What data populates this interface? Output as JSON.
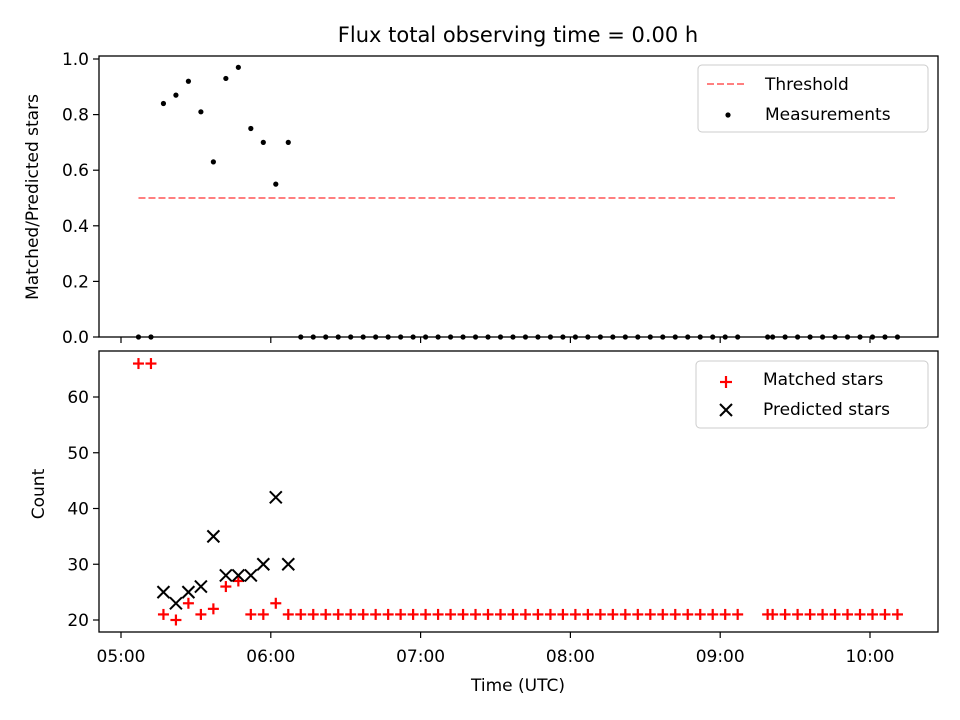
{
  "chart_data": {
    "title": "Flux total observing time = 0.00 h",
    "xlabel": "Time (UTC)",
    "x_ticks": [
      "05:00",
      "06:00",
      "07:00",
      "08:00",
      "09:00",
      "10:00"
    ],
    "panels": [
      {
        "type": "scatter",
        "ylabel": "Matched/Predicted stars",
        "ylim": [
          0.0,
          1.0
        ],
        "y_ticks": [
          "0.0",
          "0.2",
          "0.4",
          "0.6",
          "0.8",
          "1.0"
        ],
        "grid": false,
        "legend_position": "top-right",
        "threshold": {
          "name": "Threshold",
          "value": 0.5,
          "x_start": "05:07",
          "x_end": "10:10",
          "color": "#ff7f7f",
          "style": "dashed"
        },
        "series": [
          {
            "name": "Measurements",
            "marker": "dot",
            "color": "#000000",
            "points": [
              [
                "05:07",
                0.0
              ],
              [
                "05:12",
                0.0
              ],
              [
                "05:17",
                0.84
              ],
              [
                "05:22",
                0.87
              ],
              [
                "05:27",
                0.92
              ],
              [
                "05:32",
                0.81
              ],
              [
                "05:37",
                0.63
              ],
              [
                "05:42",
                0.93
              ],
              [
                "05:47",
                0.97
              ],
              [
                "05:52",
                0.75
              ],
              [
                "05:57",
                0.7
              ],
              [
                "06:02",
                0.55
              ],
              [
                "06:07",
                0.7
              ],
              [
                "06:12",
                0.0
              ],
              [
                "06:17",
                0.0
              ],
              [
                "06:22",
                0.0
              ],
              [
                "06:27",
                0.0
              ],
              [
                "06:32",
                0.0
              ],
              [
                "06:37",
                0.0
              ],
              [
                "06:42",
                0.0
              ],
              [
                "06:47",
                0.0
              ],
              [
                "06:52",
                0.0
              ],
              [
                "06:57",
                0.0
              ],
              [
                "07:02",
                0.0
              ],
              [
                "07:07",
                0.0
              ],
              [
                "07:12",
                0.0
              ],
              [
                "07:17",
                0.0
              ],
              [
                "07:22",
                0.0
              ],
              [
                "07:27",
                0.0
              ],
              [
                "07:32",
                0.0
              ],
              [
                "07:37",
                0.0
              ],
              [
                "07:42",
                0.0
              ],
              [
                "07:47",
                0.0
              ],
              [
                "07:52",
                0.0
              ],
              [
                "07:57",
                0.0
              ],
              [
                "08:02",
                0.0
              ],
              [
                "08:07",
                0.0
              ],
              [
                "08:12",
                0.0
              ],
              [
                "08:17",
                0.0
              ],
              [
                "08:22",
                0.0
              ],
              [
                "08:27",
                0.0
              ],
              [
                "08:32",
                0.0
              ],
              [
                "08:37",
                0.0
              ],
              [
                "08:42",
                0.0
              ],
              [
                "08:47",
                0.0
              ],
              [
                "08:52",
                0.0
              ],
              [
                "08:57",
                0.0
              ],
              [
                "09:02",
                0.0
              ],
              [
                "09:07",
                0.0
              ],
              [
                "09:19",
                0.0
              ],
              [
                "09:21",
                0.0
              ],
              [
                "09:26",
                0.0
              ],
              [
                "09:31",
                0.0
              ],
              [
                "09:36",
                0.0
              ],
              [
                "09:41",
                0.0
              ],
              [
                "09:46",
                0.0
              ],
              [
                "09:51",
                0.0
              ],
              [
                "09:56",
                0.0
              ],
              [
                "10:01",
                0.0
              ],
              [
                "10:06",
                0.0
              ],
              [
                "10:11",
                0.0
              ]
            ]
          }
        ]
      },
      {
        "type": "scatter",
        "ylabel": "Count",
        "ylim": [
          18,
          68
        ],
        "y_ticks": [
          "20",
          "30",
          "40",
          "50",
          "60"
        ],
        "grid": false,
        "legend_position": "top-right",
        "series": [
          {
            "name": "Matched stars",
            "marker": "plus",
            "color": "#ff0000",
            "points": [
              [
                "05:07",
                66
              ],
              [
                "05:12",
                66
              ],
              [
                "05:17",
                21
              ],
              [
                "05:22",
                20
              ],
              [
                "05:27",
                23
              ],
              [
                "05:32",
                21
              ],
              [
                "05:37",
                22
              ],
              [
                "05:42",
                26
              ],
              [
                "05:47",
                27
              ],
              [
                "05:52",
                21
              ],
              [
                "05:57",
                21
              ],
              [
                "06:02",
                23
              ],
              [
                "06:07",
                21
              ],
              [
                "06:12",
                21
              ],
              [
                "06:17",
                21
              ],
              [
                "06:22",
                21
              ],
              [
                "06:27",
                21
              ],
              [
                "06:32",
                21
              ],
              [
                "06:37",
                21
              ],
              [
                "06:42",
                21
              ],
              [
                "06:47",
                21
              ],
              [
                "06:52",
                21
              ],
              [
                "06:57",
                21
              ],
              [
                "07:02",
                21
              ],
              [
                "07:07",
                21
              ],
              [
                "07:12",
                21
              ],
              [
                "07:17",
                21
              ],
              [
                "07:22",
                21
              ],
              [
                "07:27",
                21
              ],
              [
                "07:32",
                21
              ],
              [
                "07:37",
                21
              ],
              [
                "07:42",
                21
              ],
              [
                "07:47",
                21
              ],
              [
                "07:52",
                21
              ],
              [
                "07:57",
                21
              ],
              [
                "08:02",
                21
              ],
              [
                "08:07",
                21
              ],
              [
                "08:12",
                21
              ],
              [
                "08:17",
                21
              ],
              [
                "08:22",
                21
              ],
              [
                "08:27",
                21
              ],
              [
                "08:32",
                21
              ],
              [
                "08:37",
                21
              ],
              [
                "08:42",
                21
              ],
              [
                "08:47",
                21
              ],
              [
                "08:52",
                21
              ],
              [
                "08:57",
                21
              ],
              [
                "09:02",
                21
              ],
              [
                "09:07",
                21
              ],
              [
                "09:19",
                21
              ],
              [
                "09:21",
                21
              ],
              [
                "09:26",
                21
              ],
              [
                "09:31",
                21
              ],
              [
                "09:36",
                21
              ],
              [
                "09:41",
                21
              ],
              [
                "09:46",
                21
              ],
              [
                "09:51",
                21
              ],
              [
                "09:56",
                21
              ],
              [
                "10:01",
                21
              ],
              [
                "10:06",
                21
              ],
              [
                "10:11",
                21
              ]
            ]
          },
          {
            "name": "Predicted stars",
            "marker": "x",
            "color": "#000000",
            "points": [
              [
                "05:17",
                25
              ],
              [
                "05:22",
                23
              ],
              [
                "05:27",
                25
              ],
              [
                "05:32",
                26
              ],
              [
                "05:37",
                35
              ],
              [
                "05:42",
                28
              ],
              [
                "05:47",
                28
              ],
              [
                "05:52",
                28
              ],
              [
                "05:57",
                30
              ],
              [
                "06:02",
                42
              ],
              [
                "06:07",
                30
              ]
            ]
          }
        ]
      }
    ]
  }
}
